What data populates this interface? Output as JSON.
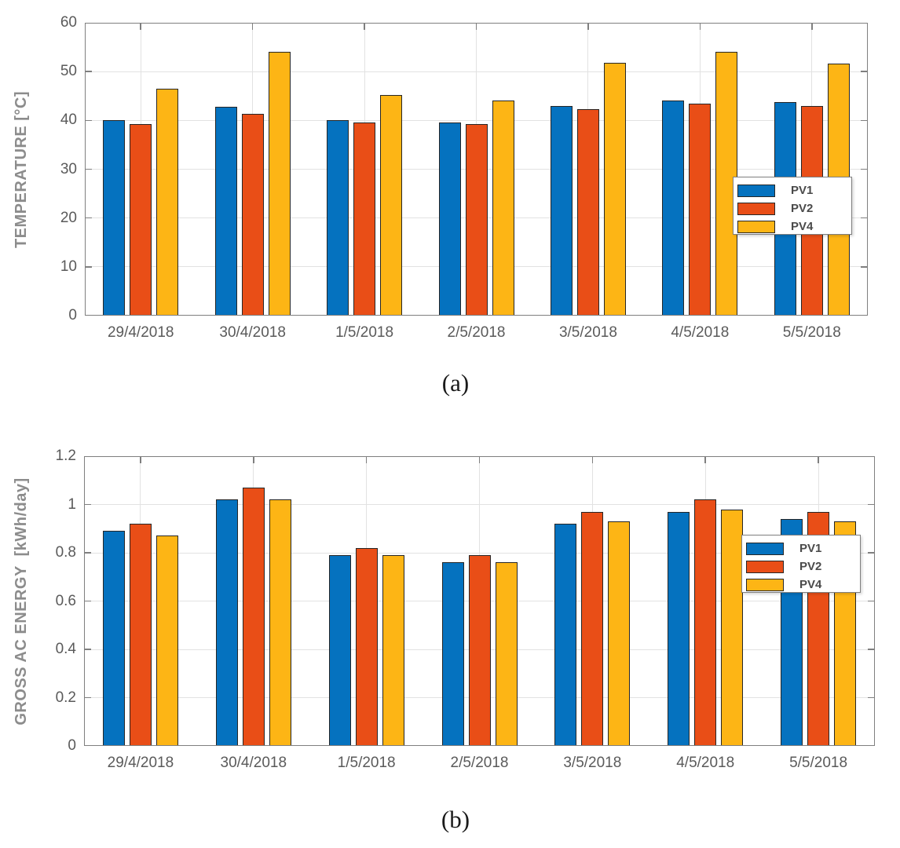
{
  "captions": {
    "a": "(a)",
    "b": "(b)"
  },
  "colors": {
    "pv1": "#0572BF",
    "pv2": "#E94E17",
    "pv4": "#FDB515",
    "axis": "#7f7f7f",
    "grid": "#e2e2e2",
    "tick_text": "#5a5a5a",
    "axis_label_text": "#8c8c8c"
  },
  "chart_data": [
    {
      "type": "bar",
      "panel": "a",
      "title": "",
      "xlabel": "",
      "ylabel": "TEMPERATURE [°C]",
      "categories": [
        "29/4/2018",
        "30/4/2018",
        "1/5/2018",
        "2/5/2018",
        "3/5/2018",
        "4/5/2018",
        "5/5/2018"
      ],
      "series": [
        {
          "name": "PV1",
          "color": "#0572BF",
          "values": [
            40.0,
            42.8,
            40.0,
            39.6,
            43.0,
            44.0,
            43.8
          ]
        },
        {
          "name": "PV2",
          "color": "#E94E17",
          "values": [
            39.2,
            41.4,
            39.6,
            39.2,
            42.3,
            43.5,
            43.0
          ]
        },
        {
          "name": "PV4",
          "color": "#FDB515",
          "values": [
            46.5,
            54.0,
            45.2,
            44.0,
            51.8,
            54.0,
            51.7
          ]
        }
      ],
      "ylim": [
        0,
        60
      ],
      "yticks": [
        0,
        10,
        20,
        30,
        40,
        50,
        60
      ],
      "ytick_labels": [
        "0",
        "10",
        "20",
        "30",
        "40",
        "50",
        "60"
      ],
      "grid": true,
      "legend": [
        "PV1",
        "PV2",
        "PV4"
      ],
      "legend_position": "inside-right-middle"
    },
    {
      "type": "bar",
      "panel": "b",
      "title": "",
      "xlabel": "",
      "ylabel": "GROSS AC ENERGY  [kWh/day]",
      "categories": [
        "29/4/2018",
        "30/4/2018",
        "1/5/2018",
        "2/5/2018",
        "3/5/2018",
        "4/5/2018",
        "5/5/2018"
      ],
      "series": [
        {
          "name": "PV1",
          "color": "#0572BF",
          "values": [
            0.89,
            1.02,
            0.79,
            0.76,
            0.92,
            0.97,
            0.94
          ]
        },
        {
          "name": "PV2",
          "color": "#E94E17",
          "values": [
            0.92,
            1.07,
            0.82,
            0.79,
            0.97,
            1.02,
            0.97
          ]
        },
        {
          "name": "PV4",
          "color": "#FDB515",
          "values": [
            0.87,
            1.02,
            0.79,
            0.76,
            0.93,
            0.98,
            0.93
          ]
        }
      ],
      "ylim": [
        0,
        1.2
      ],
      "yticks": [
        0,
        0.2,
        0.4,
        0.6,
        0.8,
        1,
        1.2
      ],
      "ytick_labels": [
        "0",
        "0.2",
        "0.4",
        "0.6",
        "0.8",
        "1",
        "1.2"
      ],
      "grid": true,
      "legend": [
        "PV1",
        "PV2",
        "PV4"
      ],
      "legend_position": "inside-right-middle"
    }
  ]
}
